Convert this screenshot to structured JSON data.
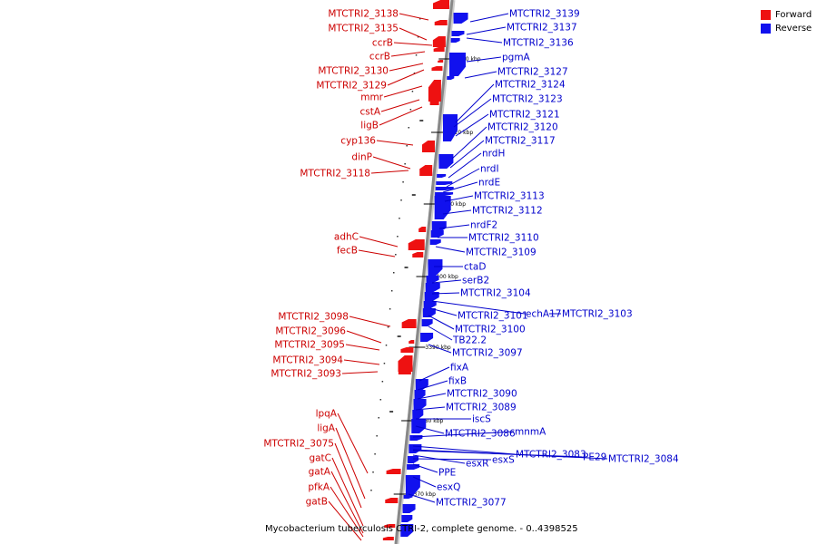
{
  "title": "Mycobacterium tuberculosis CTRI-2, complete genome. - 0..4398525",
  "colors": {
    "forward": "#ee1111",
    "reverse": "#1111ee",
    "label_forward": "#cc0000",
    "label_reverse": "#0000cc",
    "backbone": "#888888"
  },
  "legend": [
    {
      "label": "Forward",
      "color": "#ee1111"
    },
    {
      "label": "Reverse",
      "color": "#1111ee"
    }
  ],
  "ticks": [
    "3430 kbp",
    "3420 kbp",
    "3410 kbp",
    "3400 kbp",
    "3390 kbp",
    "3380 kbp",
    "3370 kbp"
  ],
  "forward_genes": [
    "MTCTRI2_3138",
    "MTCTRI2_3135",
    "ccrB",
    "ccrB",
    "MTCTRI2_3130",
    "MTCTRI2_3129",
    "mmr",
    "cstA",
    "ligB",
    "cyp136",
    "dinP",
    "MTCTRI2_3118",
    "adhC",
    "fecB",
    "MTCTRI2_3098",
    "MTCTRI2_3096",
    "MTCTRI2_3095",
    "MTCTRI2_3094",
    "MTCTRI2_3093",
    "lpqA",
    "ligA",
    "MTCTRI2_3075",
    "gatC",
    "gatA",
    "pfkA",
    "gatB"
  ],
  "reverse_genes": [
    "MTCTRI2_3139",
    "MTCTRI2_3137",
    "MTCTRI2_3136",
    "pgmA",
    "MTCTRI2_3127",
    "MTCTRI2_3124",
    "MTCTRI2_3123",
    "MTCTRI2_3121",
    "MTCTRI2_3120",
    "MTCTRI2_3117",
    "nrdH",
    "nrdI",
    "nrdE",
    "MTCTRI2_3113",
    "MTCTRI2_3112",
    "nrdF2",
    "MTCTRI2_3110",
    "MTCTRI2_3109",
    "ctaD",
    "serB2",
    "MTCTRI2_3104",
    "echA17",
    "MTCTRI2_3103",
    "MTCTRI2_3101",
    "MTCTRI2_3100",
    "TB22.2",
    "MTCTRI2_3097",
    "fixA",
    "fixB",
    "MTCTRI2_3090",
    "MTCTRI2_3089",
    "iscS",
    "MTCTRI2_3086",
    "mnmA",
    "MTCTRI2_3083",
    "PE29",
    "MTCTRI2_3084",
    "esxR",
    "esxS",
    "PPE",
    "esxQ",
    "MTCTRI2_3077"
  ]
}
